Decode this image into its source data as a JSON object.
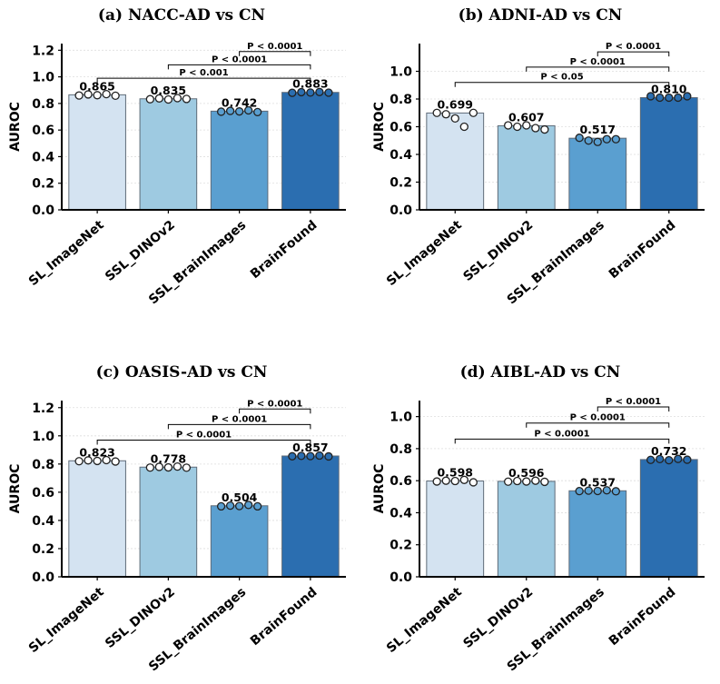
{
  "chart_data": [
    {
      "type": "bar",
      "title": "(a)  NACC-AD vs CN",
      "ylabel": "AUROC",
      "xlabel": "",
      "ylim": [
        0,
        1.25
      ],
      "yticks": [
        "0.0",
        "0.2",
        "0.4",
        "0.6",
        "0.8",
        "1.0",
        "1.2"
      ],
      "grid": true,
      "categories": [
        "SL_ImageNet",
        "SSL_DINOv2",
        "SSL_BrainImages",
        "BrainFound"
      ],
      "values": [
        0.865,
        0.835,
        0.742,
        0.883
      ],
      "value_labels": [
        "0.865",
        "0.835",
        "0.742",
        "0.883"
      ],
      "points": [
        [
          0.86,
          0.868,
          0.862,
          0.87,
          0.858
        ],
        [
          0.832,
          0.838,
          0.83,
          0.84,
          0.834
        ],
        [
          0.738,
          0.744,
          0.74,
          0.748,
          0.735
        ],
        [
          0.88,
          0.885,
          0.882,
          0.886,
          0.881
        ]
      ],
      "comparisons": [
        {
          "from": 0,
          "to": 3,
          "label": "P < 0.001",
          "y": 0.99
        },
        {
          "from": 1,
          "to": 3,
          "label": "P < 0.0001",
          "y": 1.09
        },
        {
          "from": 2,
          "to": 3,
          "label": "P < 0.0001",
          "y": 1.19
        }
      ]
    },
    {
      "type": "bar",
      "title": "(b)  ADNI-AD vs CN",
      "ylabel": "AUROC",
      "xlabel": "",
      "ylim": [
        0,
        1.2
      ],
      "yticks": [
        "0.0",
        "0.2",
        "0.4",
        "0.6",
        "0.8",
        "1.0"
      ],
      "grid": true,
      "categories": [
        "SL_ImageNet",
        "SSL_DINOv2",
        "SSL_BrainImages",
        "BrainFound"
      ],
      "values": [
        0.699,
        0.607,
        0.517,
        0.81
      ],
      "value_labels": [
        "0.699",
        "0.607",
        "0.517",
        "0.810"
      ],
      "points": [
        [
          0.7,
          0.69,
          0.66,
          0.6,
          0.7
        ],
        [
          0.61,
          0.6,
          0.61,
          0.59,
          0.58
        ],
        [
          0.52,
          0.5,
          0.49,
          0.51,
          0.51
        ],
        [
          0.82,
          0.81,
          0.81,
          0.81,
          0.82
        ]
      ],
      "comparisons": [
        {
          "from": 0,
          "to": 3,
          "label": "P < 0.05",
          "y": 0.92
        },
        {
          "from": 1,
          "to": 3,
          "label": "P < 0.0001",
          "y": 1.03
        },
        {
          "from": 2,
          "to": 3,
          "label": "P < 0.0001",
          "y": 1.14
        }
      ]
    },
    {
      "type": "bar",
      "title": "(c)  OASIS-AD vs CN",
      "ylabel": "AUROC",
      "xlabel": "",
      "ylim": [
        0,
        1.25
      ],
      "yticks": [
        "0.0",
        "0.2",
        "0.4",
        "0.6",
        "0.8",
        "1.0",
        "1.2"
      ],
      "grid": true,
      "categories": [
        "SL_ImageNet",
        "SSL_DINOv2",
        "SSL_BrainImages",
        "BrainFound"
      ],
      "values": [
        0.823,
        0.778,
        0.504,
        0.857
      ],
      "value_labels": [
        "0.823",
        "0.778",
        "0.504",
        "0.857"
      ],
      "points": [
        [
          0.82,
          0.826,
          0.822,
          0.828,
          0.818
        ],
        [
          0.775,
          0.78,
          0.776,
          0.782,
          0.774
        ],
        [
          0.5,
          0.505,
          0.502,
          0.51,
          0.5
        ],
        [
          0.855,
          0.858,
          0.856,
          0.86,
          0.854
        ]
      ],
      "comparisons": [
        {
          "from": 0,
          "to": 3,
          "label": "P < 0.0001",
          "y": 0.97
        },
        {
          "from": 1,
          "to": 3,
          "label": "P < 0.0001",
          "y": 1.08
        },
        {
          "from": 2,
          "to": 3,
          "label": "P < 0.0001",
          "y": 1.19
        }
      ]
    },
    {
      "type": "bar",
      "title": "(d)  AIBL-AD vs CN",
      "ylabel": "AUROC",
      "xlabel": "",
      "ylim": [
        0,
        1.1
      ],
      "yticks": [
        "0.0",
        "0.2",
        "0.4",
        "0.6",
        "0.8",
        "1.0"
      ],
      "grid": true,
      "categories": [
        "SL_ImageNet",
        "SSL_DINOv2",
        "SSL_BrainImages",
        "BrainFound"
      ],
      "values": [
        0.598,
        0.596,
        0.537,
        0.732
      ],
      "value_labels": [
        "0.598",
        "0.596",
        "0.537",
        "0.732"
      ],
      "points": [
        [
          0.595,
          0.6,
          0.598,
          0.605,
          0.59
        ],
        [
          0.594,
          0.598,
          0.595,
          0.6,
          0.593
        ],
        [
          0.535,
          0.538,
          0.536,
          0.54,
          0.534
        ],
        [
          0.73,
          0.735,
          0.728,
          0.736,
          0.731
        ]
      ],
      "comparisons": [
        {
          "from": 0,
          "to": 3,
          "label": "P < 0.0001",
          "y": 0.86
        },
        {
          "from": 1,
          "to": 3,
          "label": "P < 0.0001",
          "y": 0.96
        },
        {
          "from": 2,
          "to": 3,
          "label": "P < 0.0001",
          "y": 1.06
        }
      ]
    }
  ],
  "colors": {
    "bars": [
      "#d4e3f1",
      "#9ecae1",
      "#5a9fd0",
      "#2b6eb0"
    ],
    "bar_edge": "#5f6b78",
    "grid": "#dedede",
    "axis": "#000000",
    "point_fill": [
      "#ffffff",
      "#ffffff",
      "#5a9fd0",
      "#2b6eb0"
    ]
  }
}
